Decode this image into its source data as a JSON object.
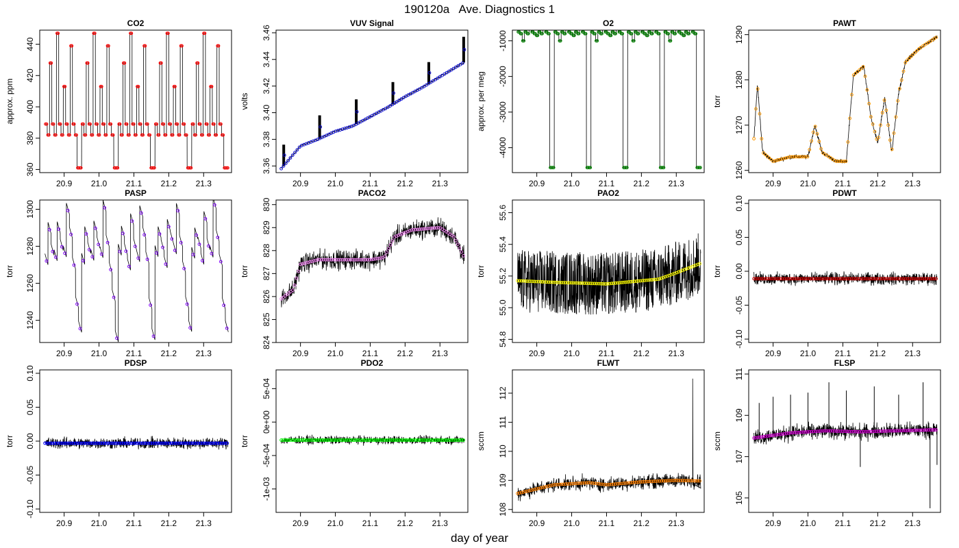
{
  "title": "190120a   Ave. Diagnostics 1",
  "xlabel": "day of year",
  "chart_data": [
    {
      "name": "co2",
      "type": "line",
      "title": "CO2",
      "ylabel": "approx. ppm",
      "color": "#ff0000",
      "xlim": [
        20.83,
        21.38
      ],
      "xticks": [
        "20.9",
        "21.0",
        "21.1",
        "21.2",
        "21.3"
      ],
      "ylim": [
        358,
        449
      ],
      "yticks": [
        "360",
        "380",
        "400",
        "420",
        "440"
      ],
      "ytickvals": [
        360,
        380,
        400,
        420,
        440
      ],
      "pattern": "co2"
    },
    {
      "name": "vuv-signal",
      "type": "line",
      "title": "VUV Signal",
      "ylabel": "volts",
      "color": "#0000cc",
      "xlim": [
        20.83,
        21.38
      ],
      "xticks": [
        "20.9",
        "21.0",
        "21.1",
        "21.2",
        "21.3"
      ],
      "ylim": [
        3.355,
        3.462
      ],
      "yticks": [
        "3.36",
        "3.38",
        "3.40",
        "3.42",
        "3.44",
        "3.46"
      ],
      "ytickvals": [
        3.36,
        3.38,
        3.4,
        3.42,
        3.44,
        3.46
      ],
      "pattern": "vuv"
    },
    {
      "name": "o2",
      "type": "line",
      "title": "O2",
      "ylabel": "approx. per meg",
      "color": "#008000",
      "xlim": [
        20.83,
        21.38
      ],
      "xticks": [
        "20.9",
        "21.0",
        "21.1",
        "21.2",
        "21.3"
      ],
      "ylim": [
        -4700,
        -700
      ],
      "yticks": [
        "-4000",
        "-3000",
        "-2000",
        "-1000"
      ],
      "ytickvals": [
        -4000,
        -3000,
        -2000,
        -1000
      ],
      "pattern": "o2"
    },
    {
      "name": "pawt",
      "type": "line",
      "title": "PAWT",
      "ylabel": "torr",
      "color": "#ff9900",
      "xlim": [
        20.83,
        21.38
      ],
      "xticks": [
        "20.9",
        "21.0",
        "21.1",
        "21.2",
        "21.3"
      ],
      "ylim": [
        1259.5,
        1291
      ],
      "yticks": [
        "1260",
        "1270",
        "1280",
        "1290"
      ],
      "ytickvals": [
        1260,
        1270,
        1280,
        1290
      ],
      "pattern": "pawt"
    },
    {
      "name": "pasp",
      "type": "line",
      "title": "PASP",
      "ylabel": "torr",
      "color": "#8000ff",
      "xlim": [
        20.83,
        21.38
      ],
      "xticks": [
        "20.9",
        "21.0",
        "21.1",
        "21.2",
        "21.3"
      ],
      "ylim": [
        1228,
        1305
      ],
      "yticks": [
        "1240",
        "1260",
        "1280",
        "1300"
      ],
      "ytickvals": [
        1240,
        1260,
        1280,
        1300
      ],
      "pattern": "pasp"
    },
    {
      "name": "paco2",
      "type": "line",
      "title": "PACO2",
      "ylabel": "torr",
      "color": "#ee82ee",
      "xlim": [
        20.83,
        21.38
      ],
      "xticks": [
        "20.9",
        "21.0",
        "21.1",
        "21.2",
        "21.3"
      ],
      "ylim": [
        824,
        830.2
      ],
      "yticks": [
        "824",
        "825",
        "826",
        "827",
        "828",
        "829",
        "830"
      ],
      "ytickvals": [
        824,
        825,
        826,
        827,
        828,
        829,
        830
      ],
      "pattern": "paco2"
    },
    {
      "name": "pao2",
      "type": "line",
      "title": "PAO2",
      "ylabel": "torr",
      "color": "#ffff00",
      "xlim": [
        20.83,
        21.38
      ],
      "xticks": [
        "20.9",
        "21.0",
        "21.1",
        "21.2",
        "21.3"
      ],
      "ylim": [
        54.78,
        55.68
      ],
      "yticks": [
        "54.8",
        "55.0",
        "55.2",
        "55.4",
        "55.6"
      ],
      "ytickvals": [
        54.8,
        55.0,
        55.2,
        55.4,
        55.6
      ],
      "pattern": "pao2"
    },
    {
      "name": "pdwt",
      "type": "line",
      "title": "PDWT",
      "ylabel": "torr",
      "color": "#cc0000",
      "xlim": [
        20.83,
        21.38
      ],
      "xticks": [
        "20.9",
        "21.0",
        "21.1",
        "21.2",
        "21.3"
      ],
      "ylim": [
        -0.105,
        0.105
      ],
      "yticks": [
        "-0.10",
        "-0.05",
        "0.00",
        "0.05",
        "0.10"
      ],
      "ytickvals": [
        -0.1,
        -0.05,
        0.0,
        0.05,
        0.1
      ],
      "pattern": "pdwt"
    },
    {
      "name": "pdsp",
      "type": "line",
      "title": "PDSP",
      "ylabel": "torr",
      "color": "#0000ff",
      "xlim": [
        20.83,
        21.38
      ],
      "xticks": [
        "20.9",
        "21.0",
        "21.1",
        "21.2",
        "21.3"
      ],
      "ylim": [
        -0.105,
        0.105
      ],
      "yticks": [
        "-0.10",
        "-0.05",
        "0.00",
        "0.05",
        "0.10"
      ],
      "ytickvals": [
        -0.1,
        -0.05,
        0.0,
        0.05,
        0.1
      ],
      "pattern": "pdsp"
    },
    {
      "name": "pdo2",
      "type": "line",
      "title": "PDO2",
      "ylabel": "torr",
      "color": "#00ff00",
      "xlim": [
        20.83,
        21.38
      ],
      "xticks": [
        "20.9",
        "21.0",
        "21.1",
        "21.2",
        "21.3"
      ],
      "ylim": [
        -0.00135,
        0.00078
      ],
      "yticks": [
        "-1e-03",
        "-5e-04",
        "0e+00",
        "5e-04"
      ],
      "ytickvals": [
        -0.001,
        -0.0005,
        0.0,
        0.0005
      ],
      "pattern": "pdo2"
    },
    {
      "name": "flwt",
      "type": "line",
      "title": "FLWT",
      "ylabel": "sccm",
      "color": "#ff8000",
      "xlim": [
        20.83,
        21.38
      ],
      "xticks": [
        "20.9",
        "21.0",
        "21.1",
        "21.2",
        "21.3"
      ],
      "ylim": [
        107.9,
        112.8
      ],
      "yticks": [
        "108",
        "109",
        "110",
        "111",
        "112"
      ],
      "ytickvals": [
        108,
        109,
        110,
        111,
        112
      ],
      "pattern": "flwt"
    },
    {
      "name": "flsp",
      "type": "line",
      "title": "FLSP",
      "ylabel": "sccm",
      "color": "#cc00cc",
      "xlim": [
        20.83,
        21.38
      ],
      "xticks": [
        "20.9",
        "21.0",
        "21.1",
        "21.2",
        "21.3"
      ],
      "ylim": [
        104.3,
        111.2
      ],
      "yticks": [
        "105",
        "107",
        "109",
        "111"
      ],
      "ytickvals": [
        105,
        107,
        109,
        111
      ],
      "pattern": "flsp"
    }
  ]
}
